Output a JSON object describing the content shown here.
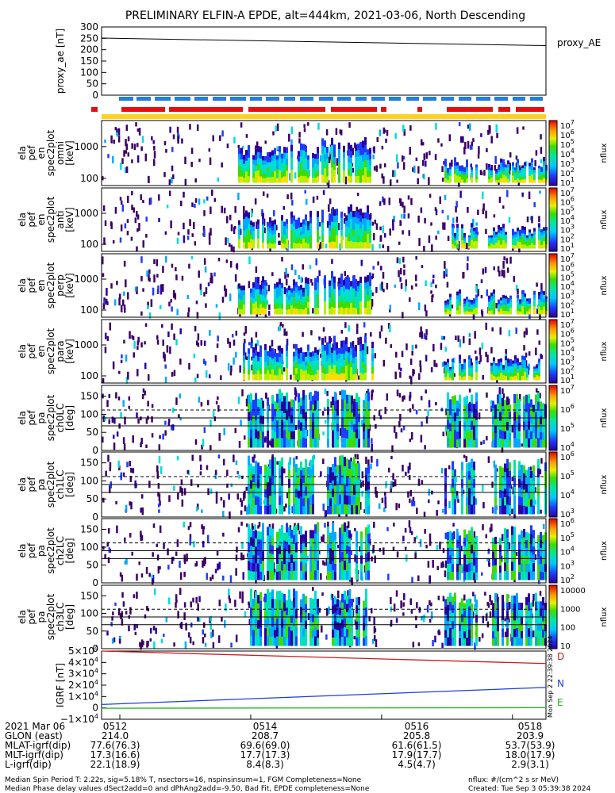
{
  "title": "PRELIMINARY ELFIN-A EPDE, alt=444km, 2021-03-06, North Descending",
  "colors": {
    "ae_line": "#000000",
    "spin_blue": "#1e7fe6",
    "spin_red": "#e01010",
    "spin_yellow": "#ffd21e",
    "igrf_D": "#c81e1e",
    "igrf_N": "#1e3ce6",
    "igrf_E": "#1eb41e"
  },
  "chart_data": [
    {
      "type": "line",
      "panel": "proxy_AE",
      "ylabel": "proxy_ae [nT]",
      "legend": "proxy_AE",
      "yticks": [
        "300",
        "250",
        "200",
        "150",
        "100",
        "50",
        "0"
      ],
      "ylim": [
        0,
        300
      ],
      "x_minutes": [
        0,
        7.3
      ],
      "y": [
        251,
        218
      ]
    },
    {
      "type": "heatmap",
      "panel": "spec2plot_omni",
      "ylabel_lines": [
        "ela",
        "pef",
        "en",
        "spec2plot",
        "omni",
        "[keV]"
      ],
      "yticks": [
        "1000",
        "100"
      ],
      "colorbar_label": "nflux",
      "colorbar_ticks": [
        "10^7",
        "10^6",
        "10^5",
        "10^4",
        "10^3",
        "10^2",
        "10^1"
      ]
    },
    {
      "type": "heatmap",
      "panel": "spec2plot_anti",
      "ylabel_lines": [
        "ela",
        "pef",
        "en",
        "spec2plot",
        "anti",
        "[keV]"
      ],
      "yticks": [
        "1000",
        "100"
      ],
      "colorbar_label": "nflux",
      "colorbar_ticks": [
        "10^7",
        "10^6",
        "10^5",
        "10^4",
        "10^3",
        "10^2",
        "10^1"
      ]
    },
    {
      "type": "heatmap",
      "panel": "spec2plot_perp",
      "ylabel_lines": [
        "ela",
        "pef",
        "en",
        "spec2plot",
        "perp",
        "[keV]"
      ],
      "yticks": [
        "1000",
        "100"
      ],
      "colorbar_label": "nflux",
      "colorbar_ticks": [
        "10^7",
        "10^6",
        "10^5",
        "10^4",
        "10^3",
        "10^2",
        "10^1"
      ]
    },
    {
      "type": "heatmap",
      "panel": "spec2plot_para",
      "ylabel_lines": [
        "ela",
        "pef",
        "en",
        "spec2plot",
        "para",
        "[keV]"
      ],
      "yticks": [
        "1000",
        "100"
      ],
      "colorbar_label": "nflux",
      "colorbar_ticks": [
        "10^7",
        "10^6",
        "10^5",
        "10^4",
        "10^3",
        "10^2",
        "10^1"
      ]
    },
    {
      "type": "heatmap",
      "panel": "spec2plot_ch0LC",
      "ylabel_lines": [
        "ela",
        "pef",
        "pa",
        "spec2plot",
        "ch0LC",
        "[deg]"
      ],
      "yticks": [
        "150",
        "100",
        "50",
        "0"
      ],
      "colorbar_label": "nflux",
      "colorbar_ticks": [
        "10^7",
        "10^6",
        "10^5",
        "10^4"
      ]
    },
    {
      "type": "heatmap",
      "panel": "spec2plot_ch1LC",
      "ylabel_lines": [
        "ela",
        "pef",
        "pa",
        "spec2plot",
        "ch1LC",
        "[deg]"
      ],
      "yticks": [
        "150",
        "100",
        "50",
        "0"
      ],
      "colorbar_label": "nflux",
      "colorbar_ticks": [
        "10^6",
        "10^5",
        "10^4",
        "10^3"
      ]
    },
    {
      "type": "heatmap",
      "panel": "spec2plot_ch2LC",
      "ylabel_lines": [
        "ela",
        "pef",
        "pa",
        "spec2plot",
        "ch2LC",
        "[deg]"
      ],
      "yticks": [
        "150",
        "100",
        "50",
        "0"
      ],
      "colorbar_label": "nflux",
      "colorbar_ticks": [
        "10^6",
        "10^5",
        "10^4",
        "10^3",
        "10^2"
      ]
    },
    {
      "type": "heatmap",
      "panel": "spec2plot_ch3LC",
      "ylabel_lines": [
        "ela",
        "pef",
        "pa",
        "spec2plot",
        "ch3LC",
        "[deg]"
      ],
      "yticks": [
        "150",
        "100",
        "50",
        "0"
      ],
      "colorbar_label": "nflux",
      "colorbar_ticks": [
        "10000",
        "1000",
        "100",
        "10"
      ]
    },
    {
      "type": "line",
      "panel": "IGRF",
      "ylabel": "IGRF [nT]",
      "yticks": [
        "5×10^4",
        "4×10^4",
        "3×10^4",
        "2×10^4",
        "1×10^4",
        "0",
        "−1×10^4"
      ],
      "ylim": [
        -10000,
        50000
      ],
      "x_minutes": [
        0,
        7.3
      ],
      "series": [
        {
          "name": "D",
          "values": [
            50000,
            39000
          ]
        },
        {
          "name": "N",
          "values": [
            3000,
            18000
          ]
        },
        {
          "name": "E",
          "values": [
            -300,
            200
          ]
        }
      ]
    }
  ],
  "bottom_table": {
    "rows": [
      {
        "label": "2021 Mar 06",
        "values": [
          "0512",
          "0514",
          "0516",
          "0518"
        ]
      },
      {
        "label": "GLON (east)",
        "values": [
          "214.0",
          "208.7",
          "205.8",
          "203.9"
        ]
      },
      {
        "label": "MLAT-igrf(dip)",
        "values": [
          "77.6(76.3)",
          "69.6(69.0)",
          "61.6(61.5)",
          "53.7(53.9)"
        ]
      },
      {
        "label": "MLT-igrf(dip)",
        "values": [
          "17.3(16.6)",
          "17.7(17.3)",
          "17.9(17.7)",
          "18.0(17.9)"
        ]
      },
      {
        "label": "L-igrf(dip)",
        "values": [
          "22.1(18.9)",
          "8.4(8.3)",
          "4.5(4.7)",
          "2.9(3.1)"
        ]
      }
    ]
  },
  "footer": {
    "left_line1": "Median Spin Period T: 2.22s, sig=5.18% T, nsectors=16, nspinsinsum=1, FGM Completeness=None",
    "left_line2": "Median Phase delay values dSect2add=0 and dPhAng2add=-9.50, Bad Fit, EPDE completeness=None",
    "right_line1": "nflux: #/(cm^2 s sr MeV)",
    "right_line2": "Created: Tue Sep  3 05:39:38 2024",
    "side_stamp": "Mon Sep  2 22:39:38 2024"
  }
}
